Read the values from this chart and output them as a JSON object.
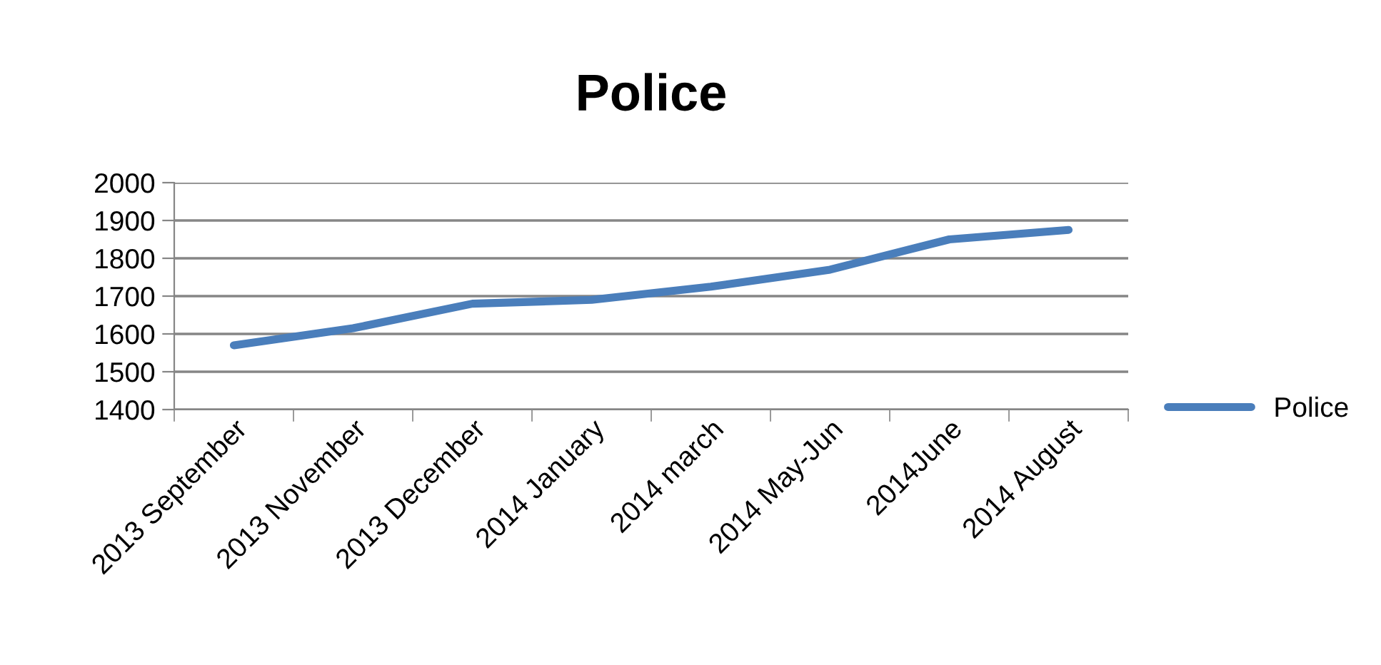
{
  "chart_data": {
    "type": "line",
    "title": "Police",
    "categories": [
      "2013 September",
      "2013 November",
      "2013 December",
      "2014 January",
      "2014 march",
      "2014 May-Jun",
      "2014June",
      "2014 August"
    ],
    "series": [
      {
        "name": "Police",
        "color": "#4a7ebb",
        "values": [
          1570,
          1615,
          1680,
          1690,
          1725,
          1770,
          1850,
          1875
        ]
      }
    ],
    "ylim": [
      1400,
      2000
    ],
    "yticks": [
      1400,
      1500,
      1600,
      1700,
      1800,
      1900,
      2000
    ],
    "grid": "y",
    "legend": "right",
    "marker": "none",
    "line_style": "solid"
  }
}
